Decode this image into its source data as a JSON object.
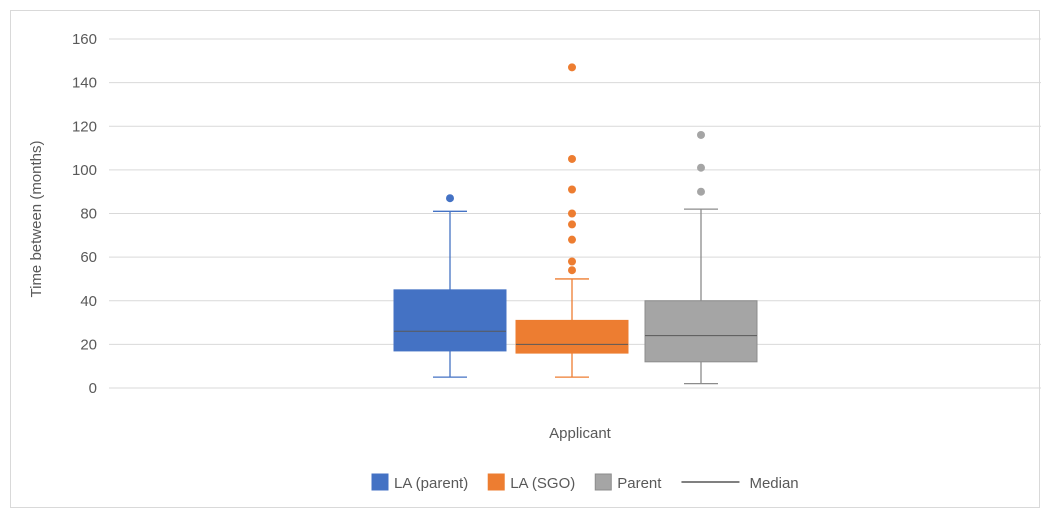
{
  "chart_data": {
    "type": "box",
    "title": "",
    "xlabel": "Applicant",
    "ylabel": "Time between (months)",
    "ylim": [
      0,
      160
    ],
    "yticks": [
      0,
      20,
      40,
      60,
      80,
      100,
      120,
      140,
      160
    ],
    "grid": true,
    "legend_position": "bottom",
    "series": [
      {
        "name": "LA (parent)",
        "color": "#4472C4",
        "whisker_low": 5,
        "q1": 17,
        "median": 26,
        "q3": 45,
        "whisker_high": 81,
        "outliers": [
          87
        ]
      },
      {
        "name": "LA (SGO)",
        "color": "#ED7D31",
        "whisker_low": 5,
        "q1": 16,
        "median": 20,
        "q3": 31,
        "whisker_high": 50,
        "outliers": [
          54,
          58,
          68,
          75,
          80,
          91,
          105,
          147
        ]
      },
      {
        "name": "Parent",
        "color": "#A5A5A5",
        "whisker_low": 2,
        "q1": 12,
        "median": 24,
        "q3": 40,
        "whisker_high": 82,
        "outliers": [
          90,
          101,
          116
        ]
      }
    ],
    "median_legend_label": "Median"
  }
}
